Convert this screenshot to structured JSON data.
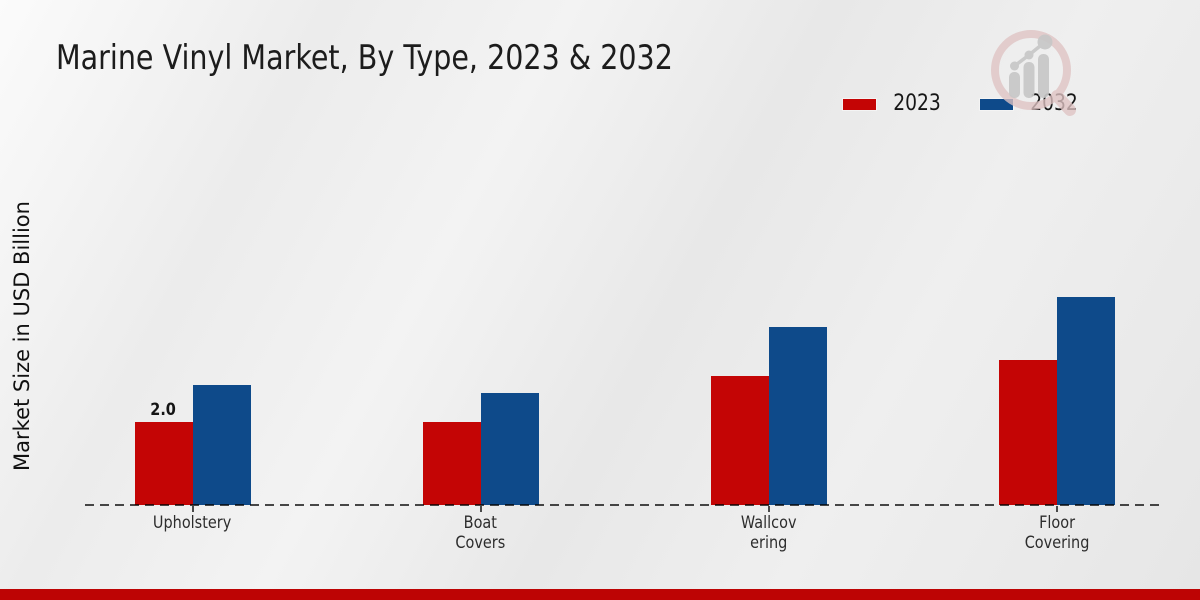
{
  "title": "Marine Vinyl Market, By Type, 2023 & 2032",
  "ylabel": "Market Size in USD Billion",
  "legend": {
    "items": [
      {
        "label": "2023",
        "color": "#c40505"
      },
      {
        "label": "2032",
        "color": "#0e4a8a"
      }
    ]
  },
  "colors": {
    "bar_2023": "#c40505",
    "bar_2032": "#0e4a8a",
    "bottom_strip": "#bd0404",
    "baseline": "#4a4a4a"
  },
  "chart_data": {
    "type": "bar",
    "title": "Marine Vinyl Market, By Type, 2023 & 2032",
    "xlabel": "",
    "ylabel": "Market Size in USD Billion",
    "categories": [
      "Upholstery",
      "Boat Covers",
      "Wallcovering",
      "Floor Covering"
    ],
    "category_lines": [
      [
        "Upholstery"
      ],
      [
        "Boat",
        "Covers"
      ],
      [
        "Wallcov",
        "ering"
      ],
      [
        "Floor",
        "Covering"
      ]
    ],
    "series": [
      {
        "name": "2023",
        "color": "#c40505",
        "values": [
          2.0,
          2.0,
          3.1,
          3.5
        ]
      },
      {
        "name": "2032",
        "color": "#0e4a8a",
        "values": [
          2.9,
          2.7,
          4.3,
          5.0
        ]
      }
    ],
    "annotations": [
      {
        "series_index": 0,
        "category_index": 0,
        "text": "2.0"
      }
    ],
    "ylim": [
      0,
      5.5
    ],
    "grid": false,
    "y_axis_ticks_visible": false,
    "baseline_style": "dashed",
    "legend_position": "top-right"
  }
}
